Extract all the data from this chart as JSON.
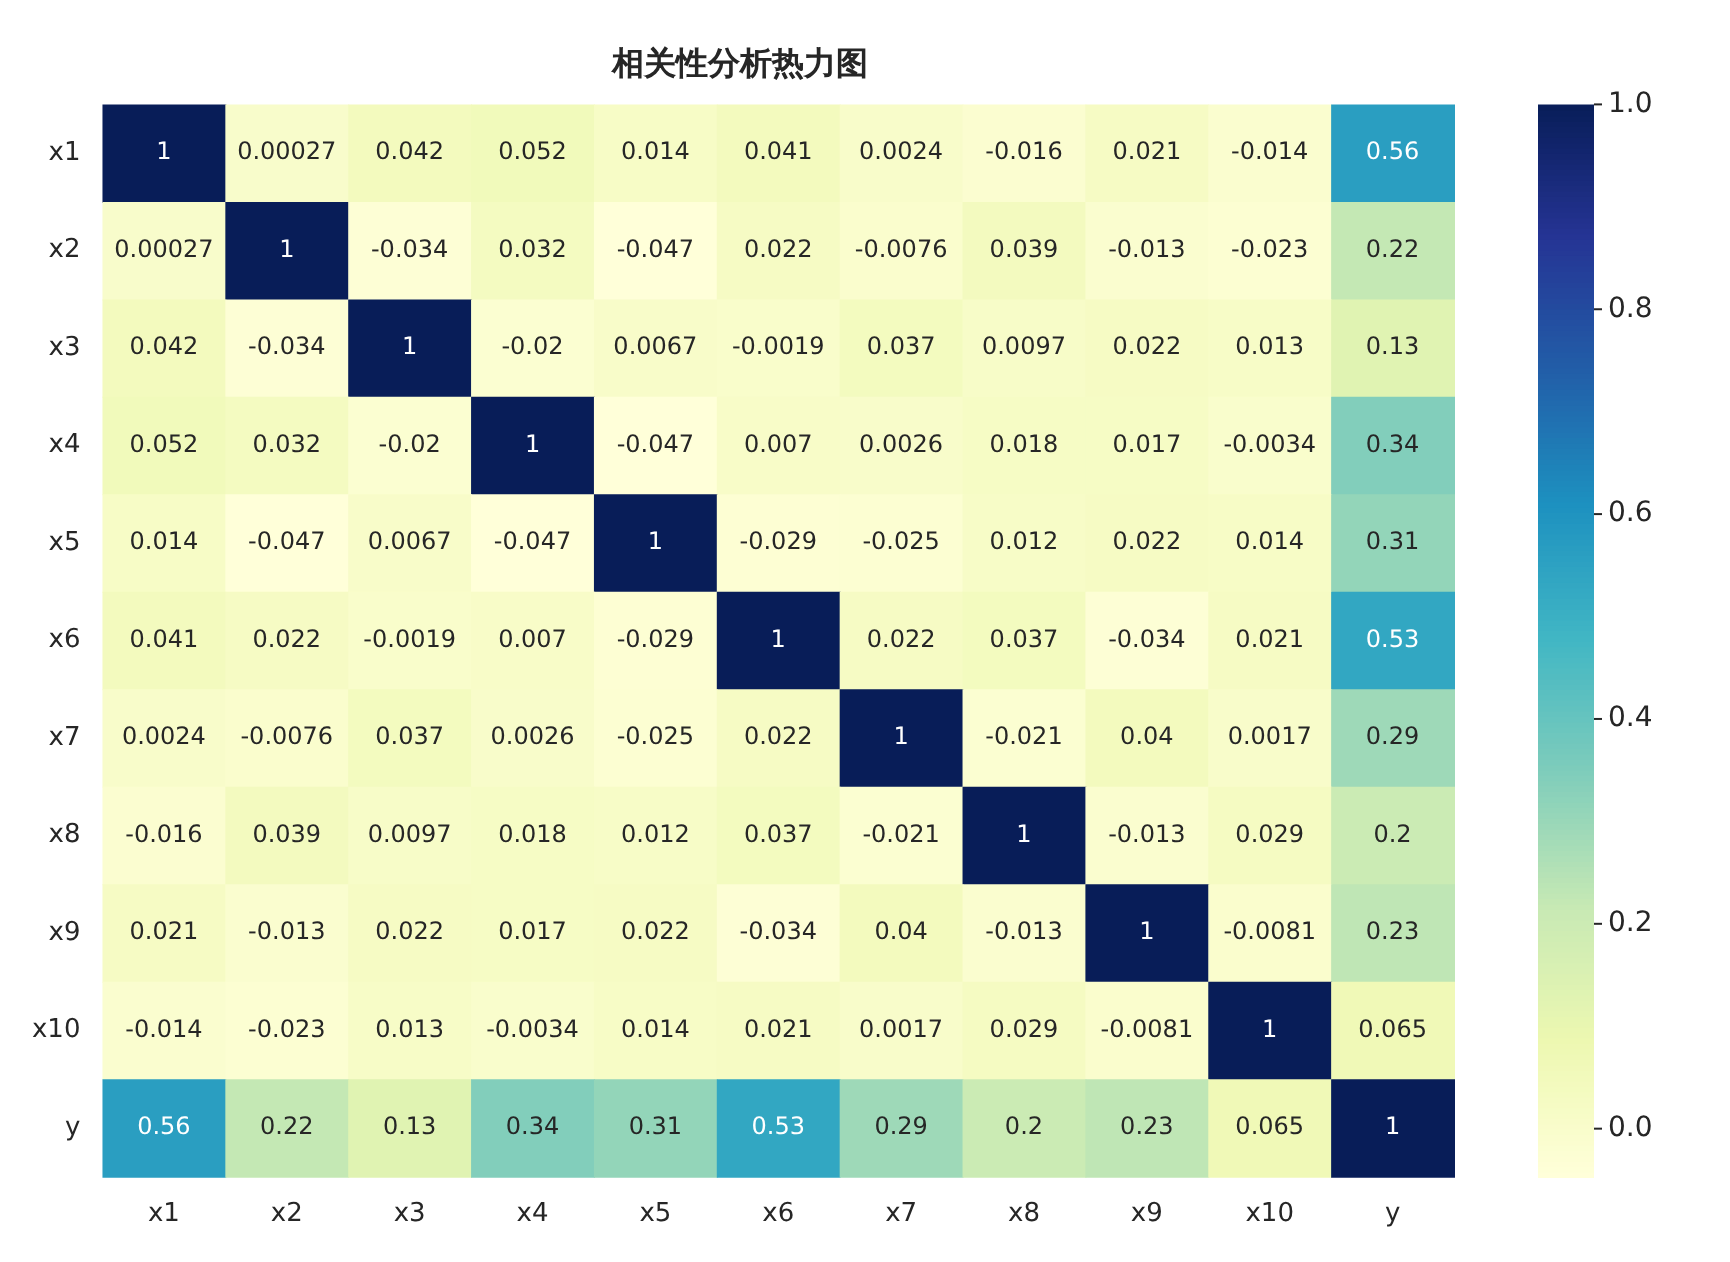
{
  "chart_data": {
    "type": "heatmap",
    "title": "相关性分析热力图",
    "categories": [
      "x1",
      "x2",
      "x3",
      "x4",
      "x5",
      "x6",
      "x7",
      "x8",
      "x9",
      "x10",
      "y"
    ],
    "y_categories": [
      "x1",
      "x2",
      "x3",
      "x4",
      "x5",
      "x6",
      "x7",
      "x8",
      "x9",
      "x10",
      "y"
    ],
    "cells": [
      [
        1,
        0.00027,
        0.042,
        0.052,
        0.014,
        0.041,
        0.0024,
        -0.016,
        0.021,
        -0.014,
        0.56
      ],
      [
        0.00027,
        1,
        -0.034,
        0.032,
        -0.047,
        0.022,
        -0.0076,
        0.039,
        -0.013,
        -0.023,
        0.22
      ],
      [
        0.042,
        -0.034,
        1,
        -0.02,
        0.0067,
        -0.0019,
        0.037,
        0.0097,
        0.022,
        0.013,
        0.13
      ],
      [
        0.052,
        0.032,
        -0.02,
        1,
        -0.047,
        0.007,
        0.0026,
        0.018,
        0.017,
        -0.0034,
        0.34
      ],
      [
        0.014,
        -0.047,
        0.0067,
        -0.047,
        1,
        -0.029,
        -0.025,
        0.012,
        0.022,
        0.014,
        0.31
      ],
      [
        0.041,
        0.022,
        -0.0019,
        0.007,
        -0.029,
        1,
        0.022,
        0.037,
        -0.034,
        0.021,
        0.53
      ],
      [
        0.0024,
        -0.0076,
        0.037,
        0.0026,
        -0.025,
        0.022,
        1,
        -0.021,
        0.04,
        0.0017,
        0.29
      ],
      [
        -0.016,
        0.039,
        0.0097,
        0.018,
        0.012,
        0.037,
        -0.021,
        1,
        -0.013,
        0.029,
        0.2
      ],
      [
        0.021,
        -0.013,
        0.022,
        0.017,
        0.022,
        -0.034,
        0.04,
        -0.013,
        1,
        -0.0081,
        0.23
      ],
      [
        -0.014,
        -0.023,
        0.013,
        -0.0034,
        0.014,
        0.021,
        0.0017,
        0.029,
        -0.0081,
        1,
        0.065
      ],
      [
        0.56,
        0.22,
        0.13,
        0.34,
        0.31,
        0.53,
        0.29,
        0.2,
        0.23,
        0.065,
        1
      ]
    ],
    "clim": [
      -0.047,
      1
    ],
    "cticks": [
      {
        "value": 0,
        "label": "0.0"
      },
      {
        "value": 0.2,
        "label": "0.2"
      },
      {
        "value": 0.4,
        "label": "0.4"
      },
      {
        "value": 0.6,
        "label": "0.6"
      },
      {
        "value": 0.8,
        "label": "0.8"
      },
      {
        "value": 1,
        "label": "1.0"
      }
    ],
    "data_labels": true
  }
}
